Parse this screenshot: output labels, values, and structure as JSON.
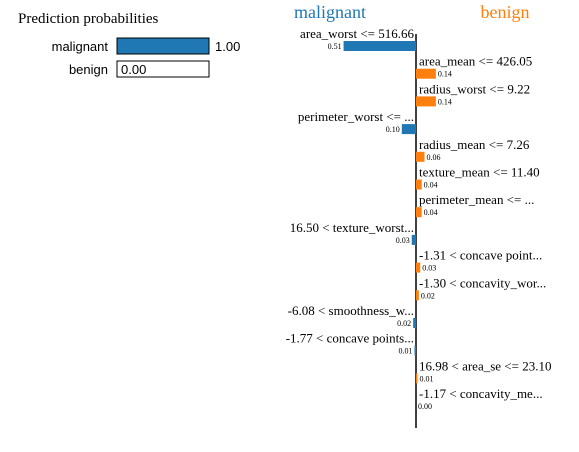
{
  "probabilities": {
    "title": "Prediction probabilities",
    "items": [
      {
        "label": "malignant",
        "value": 1.0,
        "value_text": "1.00",
        "show_outside": true
      },
      {
        "label": "benign",
        "value": 0.0,
        "value_text": "0.00",
        "show_outside": false
      }
    ]
  },
  "colors": {
    "malignant": "#1f77b4",
    "benign": "#ff7f0e",
    "bar_border": "#000000",
    "axis": "#000000",
    "text": "#000000"
  },
  "chart_data": {
    "type": "bar",
    "orientation": "horizontal-diverging",
    "class_labels": {
      "left": "malignant",
      "right": "benign"
    },
    "features": [
      {
        "label": "area_worst <= 516.66",
        "weight": 0.51,
        "weight_text": "0.51",
        "side": "left"
      },
      {
        "label": "area_mean <= 426.05",
        "weight": 0.14,
        "weight_text": "0.14",
        "side": "right"
      },
      {
        "label": "radius_worst <= 9.22",
        "weight": 0.14,
        "weight_text": "0.14",
        "side": "right"
      },
      {
        "label": "perimeter_worst <= ...",
        "weight": 0.1,
        "weight_text": "0.10",
        "side": "left"
      },
      {
        "label": "radius_mean <= 7.26",
        "weight": 0.06,
        "weight_text": "0.06",
        "side": "right"
      },
      {
        "label": "texture_mean <= 11.40",
        "weight": 0.04,
        "weight_text": "0.04",
        "side": "right"
      },
      {
        "label": "perimeter_mean <= ...",
        "weight": 0.04,
        "weight_text": "0.04",
        "side": "right"
      },
      {
        "label": "16.50 < texture_worst...",
        "weight": 0.03,
        "weight_text": "0.03",
        "side": "left"
      },
      {
        "label": "-1.31 < concave point...",
        "weight": 0.03,
        "weight_text": "0.03",
        "side": "right"
      },
      {
        "label": "-1.30 < concavity_wor...",
        "weight": 0.02,
        "weight_text": "0.02",
        "side": "right"
      },
      {
        "label": "-6.08 < smoothness_w...",
        "weight": 0.02,
        "weight_text": "0.02",
        "side": "left"
      },
      {
        "label": "-1.77 < concave points...",
        "weight": 0.01,
        "weight_text": "0.01",
        "side": "left"
      },
      {
        "label": "16.98 < area_se <= 23.10",
        "weight": 0.01,
        "weight_text": "0.01",
        "side": "right"
      },
      {
        "label": "-1.17 < concavity_me...",
        "weight": 0.0,
        "weight_text": "0.00",
        "side": "right"
      }
    ]
  }
}
